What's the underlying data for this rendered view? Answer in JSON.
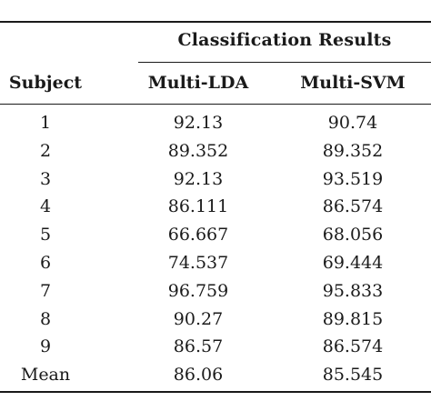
{
  "table": {
    "group_header": "Classification Results",
    "headers": {
      "subject": "Subject",
      "lda": "Multi-LDA",
      "svm": "Multi-SVM"
    },
    "rows": [
      {
        "subject": "1",
        "lda": "92.13",
        "svm": "90.74"
      },
      {
        "subject": "2",
        "lda": "89.352",
        "svm": "89.352"
      },
      {
        "subject": "3",
        "lda": "92.13",
        "svm": "93.519"
      },
      {
        "subject": "4",
        "lda": "86.111",
        "svm": "86.574"
      },
      {
        "subject": "5",
        "lda": "66.667",
        "svm": "68.056"
      },
      {
        "subject": "6",
        "lda": "74.537",
        "svm": "69.444"
      },
      {
        "subject": "7",
        "lda": "96.759",
        "svm": "95.833"
      },
      {
        "subject": "8",
        "lda": "90.27",
        "svm": "89.815"
      },
      {
        "subject": "9",
        "lda": "86.57",
        "svm": "86.574"
      },
      {
        "subject": "Mean",
        "lda": "86.06",
        "svm": "85.545"
      }
    ]
  }
}
